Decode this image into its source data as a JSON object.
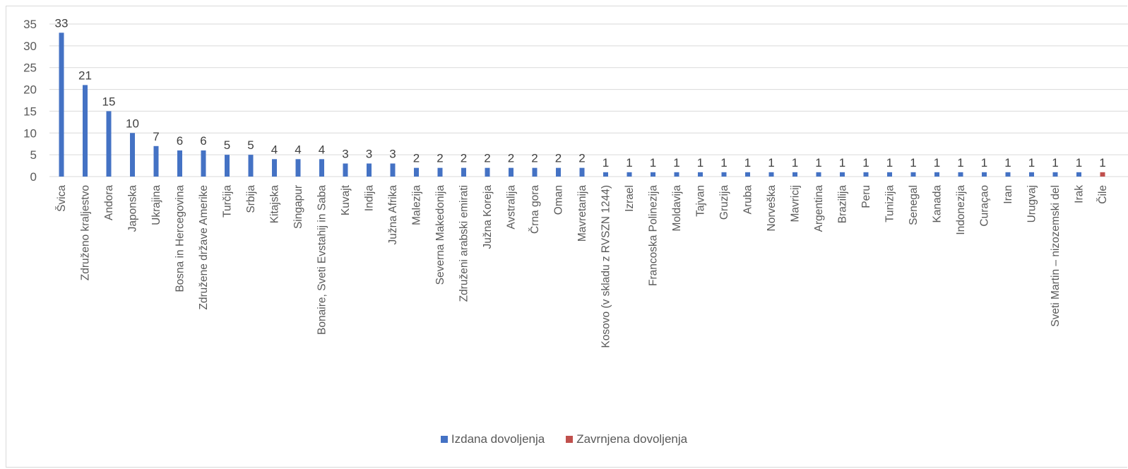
{
  "chart_data": {
    "type": "bar",
    "categories": [
      "Švica",
      "Združeno kraljestvo",
      "Andora",
      "Japonska",
      "Ukrajina",
      "Bosna in Hercegovina",
      "Združene države Amerike",
      "Turčija",
      "Srbija",
      "Kitajska",
      "Singapur",
      "Bonaire, Sveti Evstahij in Saba",
      "Kuvajt",
      "Indija",
      "Južna Afrika",
      "Malezija",
      "Severna Makedonija",
      "Združeni arabski emirati",
      "Južna Koreja",
      "Avstralija",
      "Črna gora",
      "Oman",
      "Mavretanija",
      "Kosovo (v skladu z RVSZN 1244)",
      "Izrael",
      "Francoska Polinezija",
      "Moldavija",
      "Tajvan",
      "Gruzija",
      "Aruba",
      "Norveška",
      "Mavricij",
      "Argentina",
      "Brazilija",
      "Peru",
      "Tunizija",
      "Senegal",
      "Kanada",
      "Indonezija",
      "Curaçao",
      "Iran",
      "Urugvaj",
      "Sveti Martin – nizozemski del",
      "Irak",
      "Čile"
    ],
    "series": [
      {
        "name": "Izdana dovoljenja",
        "color": "#4472c4",
        "values": [
          33,
          21,
          15,
          10,
          7,
          6,
          6,
          5,
          5,
          4,
          4,
          4,
          3,
          3,
          3,
          2,
          2,
          2,
          2,
          2,
          2,
          2,
          2,
          1,
          1,
          1,
          1,
          1,
          1,
          1,
          1,
          1,
          1,
          1,
          1,
          1,
          1,
          1,
          1,
          1,
          1,
          1,
          1,
          1,
          0
        ]
      },
      {
        "name": "Zavrnjena dovoljenja",
        "color": "#c0504d",
        "values": [
          0,
          0,
          0,
          0,
          0,
          0,
          0,
          0,
          0,
          0,
          0,
          0,
          0,
          0,
          0,
          0,
          0,
          0,
          0,
          0,
          0,
          0,
          0,
          0,
          0,
          0,
          0,
          0,
          0,
          0,
          0,
          0,
          0,
          0,
          0,
          0,
          0,
          0,
          0,
          0,
          0,
          0,
          0,
          0,
          1
        ]
      }
    ],
    "ylim": [
      0,
      35
    ],
    "yticks": [
      0,
      5,
      10,
      15,
      20,
      25,
      30,
      35
    ],
    "grid": true,
    "legend_position": "bottom"
  }
}
